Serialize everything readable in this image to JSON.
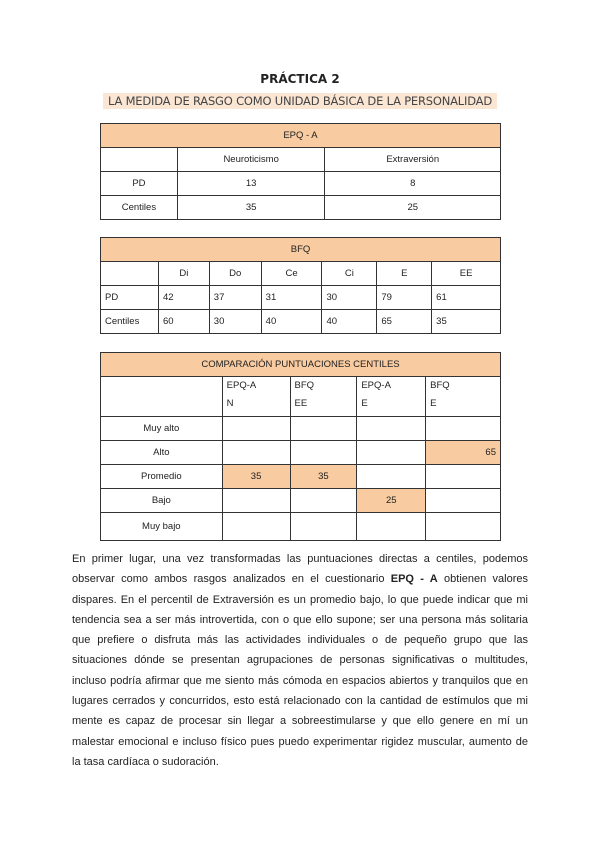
{
  "title": "PRÁCTICA 2",
  "subtitle": "LA MEDIDA DE RASGO COMO UNIDAD BÁSICA DE LA PERSONALIDAD",
  "epq": {
    "title": "EPQ - A",
    "columns": [
      "Neuroticismo",
      "Extraversión"
    ],
    "rows": [
      {
        "label": "PD",
        "values": [
          "13",
          "8"
        ]
      },
      {
        "label": "Centiles",
        "values": [
          "35",
          "25"
        ]
      }
    ]
  },
  "bfq": {
    "title": "BFQ",
    "columns": [
      "Di",
      "Do",
      "Ce",
      "Ci",
      "E",
      "EE"
    ],
    "rows": [
      {
        "label": "PD",
        "values": [
          "42",
          "37",
          "31",
          "30",
          "79",
          "61"
        ]
      },
      {
        "label": "Centiles",
        "values": [
          "60",
          "30",
          "40",
          "40",
          "65",
          "35"
        ]
      }
    ]
  },
  "comp": {
    "title": "COMPARACIÓN PUNTUACIONES CENTILES",
    "columns": [
      [
        "EPQ-A",
        "N"
      ],
      [
        "BFQ",
        "EE"
      ],
      [
        "EPQ-A",
        "E"
      ],
      [
        "BFQ",
        "E"
      ]
    ],
    "rows": [
      {
        "label": "Muy alto",
        "values": [
          "",
          "",
          "",
          ""
        ]
      },
      {
        "label": "Alto",
        "values": [
          "",
          "",
          "",
          "65"
        ]
      },
      {
        "label": "Promedio",
        "values": [
          "35",
          "35",
          "",
          ""
        ]
      },
      {
        "label": "Bajo",
        "values": [
          "",
          "",
          "25",
          ""
        ]
      },
      {
        "label": "Muy bajo",
        "values": [
          "",
          "",
          "",
          ""
        ]
      }
    ]
  },
  "paragraph": {
    "p1": "En primer lugar, una vez transformadas las puntuaciones directas a centiles, podemos observar como ambos rasgos analizados en el cuestionario ",
    "bold": "EPQ - A",
    "p2": " obtienen valores dispares. En el percentil de Extraversión es un promedio bajo, lo que puede indicar que mi tendencia sea a ser más introvertida, con o que ello supone;  ser una persona más solitaria que prefiere o disfruta más las actividades individuales o de pequeño grupo que las situaciones dónde se presentan agrupaciones de personas significativas o multitudes, incluso podría afirmar que me siento más cómoda en espacios abiertos y tranquilos que en lugares cerrados y concurridos, esto está relacionado con la cantidad de estímulos que mi mente es capaz de procesar sin llegar a sobreestimularse y que ello genere en mí un malestar emocional e incluso físico pues puedo experimentar rigidez muscular, aumento de la tasa cardíaca o sudoración."
  }
}
